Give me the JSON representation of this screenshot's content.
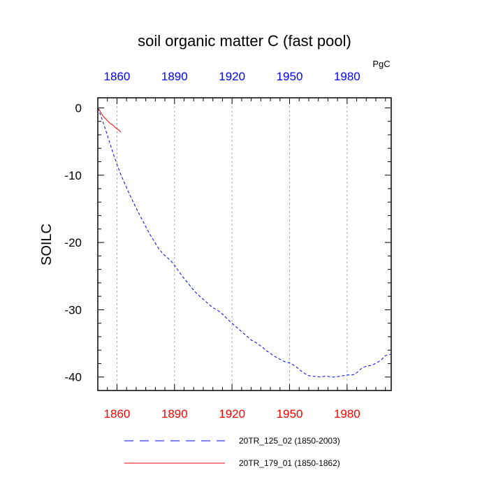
{
  "chart_data": {
    "type": "line",
    "title": "soil organic matter C (fast pool)",
    "ylabel": "SOILC",
    "units": "PgC",
    "xlim": [
      1850,
      2003
    ],
    "ylim": [
      -42,
      1.5
    ],
    "x_ticks": [
      1860,
      1890,
      1920,
      1950,
      1980
    ],
    "x_tick_labels": [
      "1860",
      "1890",
      "1920",
      "1950",
      "1980"
    ],
    "y_ticks": [
      0,
      -10,
      -20,
      -30,
      -40
    ],
    "y_tick_labels": [
      "0",
      "-10",
      "-20",
      "-30",
      "-40"
    ],
    "colors": {
      "top_axis": "#0000ff",
      "bottom_axis": "#ff0000",
      "axis": "#000000",
      "grid": "#9a9a9a"
    },
    "grid": "vertical-dashed",
    "series": [
      {
        "name": "20TR_125_02 (1850-2003)",
        "color": "#0000ff",
        "style": "dashed",
        "x": [
          1850,
          1852,
          1854,
          1856,
          1858,
          1860,
          1862,
          1864,
          1866,
          1868,
          1870,
          1872,
          1874,
          1876,
          1878,
          1880,
          1882,
          1884,
          1886,
          1888,
          1890,
          1892,
          1894,
          1896,
          1898,
          1900,
          1902,
          1904,
          1906,
          1908,
          1910,
          1912,
          1914,
          1916,
          1918,
          1920,
          1922,
          1924,
          1926,
          1928,
          1930,
          1932,
          1934,
          1936,
          1938,
          1940,
          1942,
          1944,
          1946,
          1948,
          1950,
          1952,
          1954,
          1956,
          1958,
          1960,
          1962,
          1964,
          1966,
          1968,
          1970,
          1972,
          1974,
          1976,
          1978,
          1980,
          1982,
          1984,
          1986,
          1988,
          1990,
          1992,
          1994,
          1996,
          1998,
          2000,
          2003
        ],
        "values": [
          0,
          -1.5,
          -3.2,
          -5,
          -6.8,
          -8.4,
          -9.9,
          -11.2,
          -12.5,
          -13.7,
          -14.9,
          -16,
          -17.1,
          -18.2,
          -19.2,
          -20.1,
          -21,
          -21.7,
          -22.2,
          -22.7,
          -23.4,
          -24.2,
          -25,
          -25.7,
          -26.4,
          -27.1,
          -27.7,
          -28.2,
          -28.7,
          -29.2,
          -29.7,
          -30,
          -30.4,
          -30.9,
          -31.5,
          -32,
          -32.5,
          -33,
          -33.5,
          -34,
          -34.5,
          -34.8,
          -35.2,
          -35.6,
          -36.1,
          -36.5,
          -36.9,
          -37.2,
          -37.5,
          -37.8,
          -37.9,
          -38.2,
          -38.6,
          -39.1,
          -39.5,
          -39.8,
          -39.9,
          -39.9,
          -40,
          -39.9,
          -39.9,
          -40,
          -40,
          -39.9,
          -39.8,
          -39.7,
          -39.7,
          -39.6,
          -39.1,
          -38.6,
          -38.4,
          -38.3,
          -38.1,
          -37.8,
          -37.4,
          -36.8,
          -36.6
        ]
      },
      {
        "name": "20TR_179_01 (1850-1862)",
        "color": "#ff0000",
        "style": "solid",
        "x": [
          1850,
          1851,
          1852,
          1853,
          1854,
          1855,
          1856,
          1857,
          1858,
          1859,
          1860,
          1861,
          1862
        ],
        "values": [
          0,
          -0.4,
          -0.9,
          -1.3,
          -1.6,
          -1.9,
          -2.2,
          -2.4,
          -2.6,
          -2.9,
          -3.1,
          -3.3,
          -3.6
        ]
      }
    ]
  }
}
